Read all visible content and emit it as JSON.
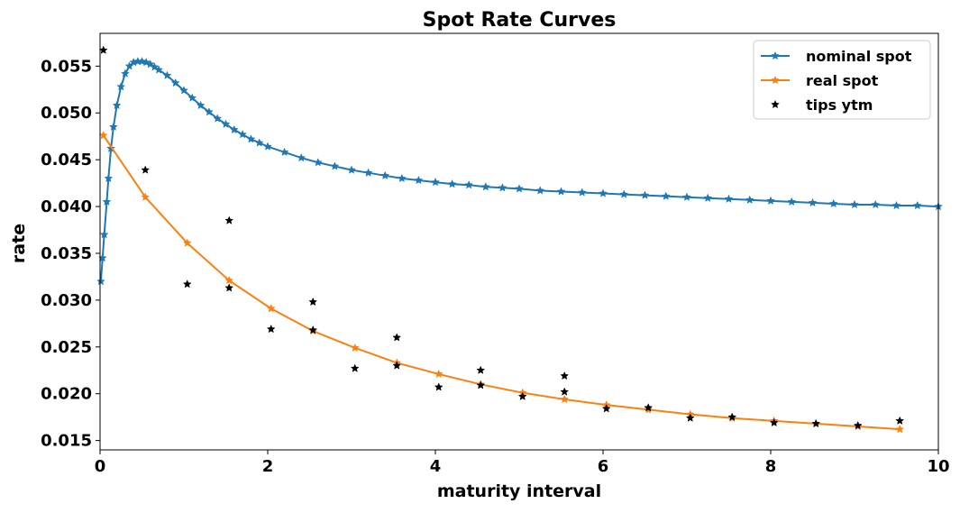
{
  "chart_data": {
    "type": "line",
    "title": "Spot Rate Curves",
    "xlabel": "maturity interval",
    "ylabel": "rate",
    "xlim": [
      0,
      10
    ],
    "ylim": [
      0.014,
      0.0585
    ],
    "xticks": [
      "0",
      "2",
      "4",
      "6",
      "8",
      "10"
    ],
    "yticks": [
      "0.015",
      "0.020",
      "0.025",
      "0.030",
      "0.035",
      "0.040",
      "0.045",
      "0.050",
      "0.055"
    ],
    "grid": false,
    "legend_position": "top-right",
    "series": [
      {
        "name": "nominal spot",
        "color": "#1f77b4",
        "marker": "star",
        "style": "line",
        "x": [
          0.01,
          0.03,
          0.05,
          0.08,
          0.1,
          0.13,
          0.16,
          0.2,
          0.25,
          0.3,
          0.35,
          0.4,
          0.45,
          0.5,
          0.55,
          0.6,
          0.65,
          0.7,
          0.8,
          0.9,
          1.0,
          1.1,
          1.2,
          1.3,
          1.4,
          1.5,
          1.6,
          1.7,
          1.8,
          1.9,
          2.0,
          2.2,
          2.4,
          2.6,
          2.8,
          3.0,
          3.2,
          3.4,
          3.6,
          3.8,
          4.0,
          4.2,
          4.4,
          4.6,
          4.8,
          5.0,
          5.25,
          5.5,
          5.75,
          6.0,
          6.25,
          6.5,
          6.75,
          7.0,
          7.25,
          7.5,
          7.75,
          8.0,
          8.25,
          8.5,
          8.75,
          9.0,
          9.25,
          9.5,
          9.75,
          10.0
        ],
        "y": [
          0.032,
          0.0345,
          0.037,
          0.0405,
          0.043,
          0.0462,
          0.0485,
          0.0508,
          0.0528,
          0.0542,
          0.055,
          0.0554,
          0.0555,
          0.0555,
          0.0554,
          0.0552,
          0.0549,
          0.0546,
          0.054,
          0.0532,
          0.0524,
          0.0516,
          0.0508,
          0.0501,
          0.0494,
          0.0488,
          0.0482,
          0.0477,
          0.0472,
          0.0468,
          0.0464,
          0.0458,
          0.0452,
          0.0447,
          0.0443,
          0.0439,
          0.0436,
          0.0433,
          0.043,
          0.0428,
          0.0426,
          0.0424,
          0.0423,
          0.0421,
          0.042,
          0.0419,
          0.0417,
          0.0416,
          0.0415,
          0.0414,
          0.0413,
          0.0412,
          0.0411,
          0.041,
          0.0409,
          0.0408,
          0.0407,
          0.0406,
          0.0405,
          0.0404,
          0.0403,
          0.0402,
          0.0402,
          0.0401,
          0.0401,
          0.04
        ]
      },
      {
        "name": "real spot",
        "color": "#ff7f0e",
        "marker": "star",
        "style": "line",
        "x": [
          0.04,
          0.54,
          1.04,
          1.54,
          2.04,
          2.54,
          3.04,
          3.54,
          4.04,
          4.54,
          5.04,
          5.54,
          6.04,
          6.54,
          7.04,
          7.54,
          8.04,
          8.54,
          9.04,
          9.54
        ],
        "y": [
          0.0476,
          0.041,
          0.0361,
          0.0321,
          0.0291,
          0.0267,
          0.0249,
          0.0233,
          0.0221,
          0.021,
          0.0201,
          0.0194,
          0.0188,
          0.0183,
          0.0178,
          0.0174,
          0.0171,
          0.0168,
          0.0165,
          0.0162
        ]
      },
      {
        "name": "tips ytm",
        "color": "#000000",
        "marker": "star",
        "style": "scatter",
        "x": [
          0.04,
          0.54,
          1.04,
          1.54,
          1.54,
          2.04,
          2.54,
          2.54,
          3.04,
          3.54,
          3.54,
          4.04,
          4.54,
          4.54,
          5.04,
          5.54,
          5.54,
          6.04,
          6.54,
          7.04,
          7.54,
          8.04,
          8.54,
          9.04,
          9.54
        ],
        "y": [
          0.0567,
          0.0439,
          0.0317,
          0.0385,
          0.0313,
          0.0269,
          0.0298,
          0.0268,
          0.0227,
          0.026,
          0.023,
          0.0207,
          0.0225,
          0.0209,
          0.0197,
          0.0219,
          0.0202,
          0.0184,
          0.0185,
          0.0174,
          0.0175,
          0.0169,
          0.0168,
          0.0166,
          0.0171
        ]
      }
    ]
  }
}
